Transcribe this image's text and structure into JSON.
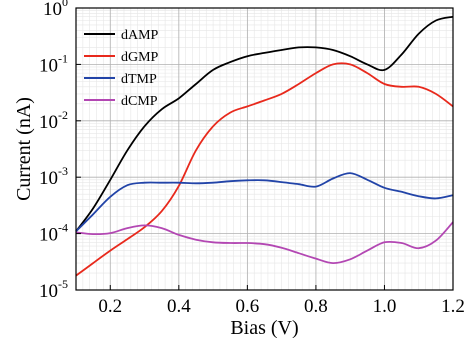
{
  "chart_data": {
    "type": "line",
    "xlabel": "Bias (V)",
    "ylabel": "Current (nA)",
    "xlim": [
      0.1,
      1.2
    ],
    "ylim": [
      1e-05,
      1
    ],
    "y_scale": "log",
    "grid": true,
    "legend_placement": "top-left",
    "x_ticks": [
      {
        "value": 0.2,
        "label": "0.2"
      },
      {
        "value": 0.4,
        "label": "0.4"
      },
      {
        "value": 0.6,
        "label": "0.6"
      },
      {
        "value": 0.8,
        "label": "0.8"
      },
      {
        "value": 1.0,
        "label": "1.0"
      },
      {
        "value": 1.2,
        "label": "1.2"
      }
    ],
    "y_ticks": [
      {
        "value": 1e-05,
        "base": "10",
        "exp": "-5"
      },
      {
        "value": 0.0001,
        "base": "10",
        "exp": "-4"
      },
      {
        "value": 0.001,
        "base": "10",
        "exp": "-3"
      },
      {
        "value": 0.01,
        "base": "10",
        "exp": "-2"
      },
      {
        "value": 0.1,
        "base": "10",
        "exp": "-1"
      },
      {
        "value": 1,
        "base": "10",
        "exp": "0"
      }
    ],
    "series": [
      {
        "name": "dAMP",
        "color": "#000000",
        "x": [
          0.1,
          0.15,
          0.2,
          0.25,
          0.3,
          0.35,
          0.4,
          0.45,
          0.5,
          0.55,
          0.6,
          0.65,
          0.7,
          0.75,
          0.8,
          0.85,
          0.9,
          0.95,
          1.0,
          1.05,
          1.1,
          1.15,
          1.2
        ],
        "y": [
          0.00011,
          0.00028,
          0.0009,
          0.003,
          0.008,
          0.016,
          0.025,
          0.045,
          0.08,
          0.11,
          0.14,
          0.16,
          0.18,
          0.2,
          0.2,
          0.18,
          0.14,
          0.1,
          0.08,
          0.15,
          0.35,
          0.6,
          0.7
        ]
      },
      {
        "name": "dGMP",
        "color": "#e8291c",
        "x": [
          0.1,
          0.15,
          0.2,
          0.25,
          0.3,
          0.35,
          0.4,
          0.45,
          0.5,
          0.55,
          0.6,
          0.65,
          0.7,
          0.75,
          0.8,
          0.85,
          0.9,
          0.95,
          1.0,
          1.05,
          1.1,
          1.15,
          1.2
        ],
        "y": [
          1.8e-05,
          3e-05,
          5e-05,
          8e-05,
          0.00013,
          0.00025,
          0.0007,
          0.003,
          0.008,
          0.014,
          0.018,
          0.023,
          0.03,
          0.045,
          0.07,
          0.1,
          0.1,
          0.07,
          0.045,
          0.04,
          0.04,
          0.03,
          0.018
        ]
      },
      {
        "name": "dTMP",
        "color": "#2244a8",
        "x": [
          0.1,
          0.15,
          0.2,
          0.25,
          0.3,
          0.35,
          0.4,
          0.45,
          0.5,
          0.55,
          0.6,
          0.65,
          0.7,
          0.75,
          0.8,
          0.85,
          0.9,
          0.95,
          1.0,
          1.05,
          1.1,
          1.15,
          1.2
        ],
        "y": [
          0.00011,
          0.00022,
          0.00045,
          0.00072,
          0.0008,
          0.0008,
          0.0008,
          0.00078,
          0.0008,
          0.00085,
          0.00088,
          0.00088,
          0.00082,
          0.00075,
          0.00068,
          0.00095,
          0.00118,
          0.0009,
          0.00065,
          0.00055,
          0.00046,
          0.00042,
          0.00048
        ]
      },
      {
        "name": "dCMP",
        "color": "#b347b3",
        "x": [
          0.1,
          0.15,
          0.2,
          0.25,
          0.3,
          0.35,
          0.4,
          0.45,
          0.5,
          0.55,
          0.6,
          0.65,
          0.7,
          0.75,
          0.8,
          0.85,
          0.9,
          0.95,
          1.0,
          1.05,
          1.1,
          1.15,
          1.2
        ],
        "y": [
          0.000105,
          9.8e-05,
          0.000102,
          0.000125,
          0.00014,
          0.000125,
          9.5e-05,
          7.8e-05,
          7e-05,
          6.8e-05,
          6.8e-05,
          6.5e-05,
          5.6e-05,
          4.5e-05,
          3.6e-05,
          3e-05,
          3.5e-05,
          5e-05,
          7e-05,
          6.8e-05,
          5.5e-05,
          7.5e-05,
          0.00016
        ]
      }
    ]
  }
}
